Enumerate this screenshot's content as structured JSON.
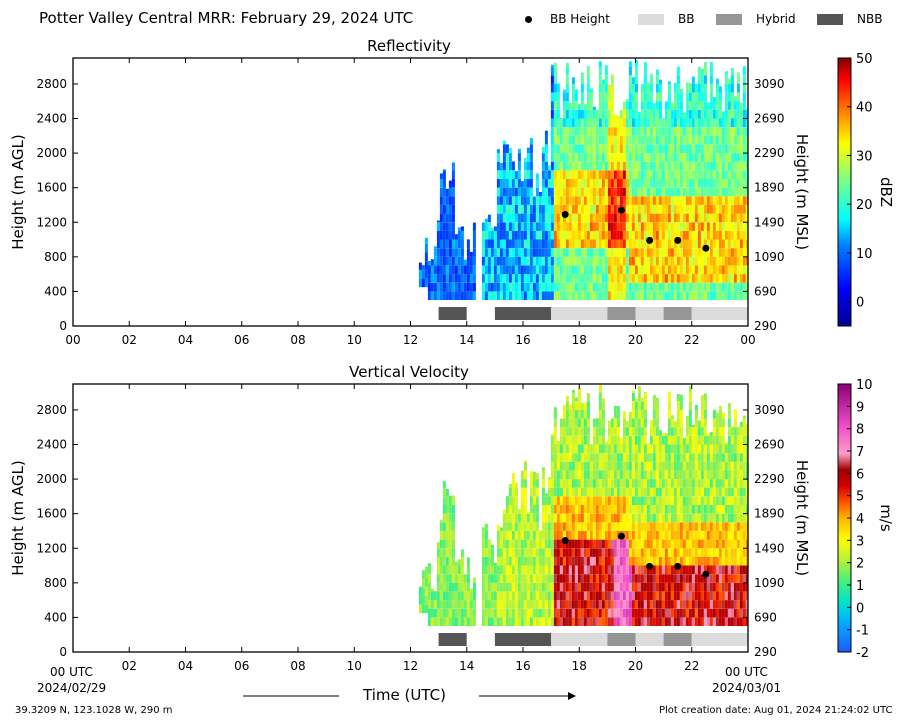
{
  "header": {
    "title": "Potter Valley Central MRR:  February 29, 2024 UTC"
  },
  "legend": [
    {
      "label": "BB Height",
      "kind": "dot",
      "color": "#000000"
    },
    {
      "label": "BB",
      "kind": "swatch",
      "color": "#dcdcdc"
    },
    {
      "label": "Hybrid",
      "kind": "swatch",
      "color": "#969696"
    },
    {
      "label": "NBB",
      "kind": "swatch",
      "color": "#555555"
    }
  ],
  "panels": [
    {
      "title": "Reflectivity",
      "ylabel": "Height (m AGL)",
      "ylabel_right": "Height (m MSL)",
      "colorbar_label": "dBZ",
      "colorbar_ticks": [
        "50",
        "40",
        "30",
        "20",
        "10",
        "0"
      ]
    },
    {
      "title": "Vertical Velocity",
      "ylabel": "Height (m AGL)",
      "ylabel_right": "Height (m MSL)",
      "colorbar_label": "m/s",
      "colorbar_ticks": [
        "10",
        "9",
        "8",
        "7",
        "6",
        "5",
        "4",
        "3",
        "2",
        "1",
        "0",
        "-1",
        "-2"
      ]
    }
  ],
  "axes": {
    "xlabel": "Time (UTC)",
    "x_start_label": "00 UTC",
    "x_end_label": "00 UTC",
    "x_start_date": "2024/02/29",
    "x_end_date": "2024/03/01"
  },
  "footer": {
    "location": "39.3209 N, 123.1028 W, 290 m",
    "creation": "Plot creation date: Aug 01, 2024 21:24:02 UTC"
  },
  "chart_data": {
    "type": "heatmap",
    "x_ticks": [
      "00",
      "02",
      "04",
      "06",
      "08",
      "10",
      "12",
      "14",
      "16",
      "18",
      "20",
      "22",
      "00"
    ],
    "x_tick_hours": [
      0,
      2,
      4,
      6,
      8,
      10,
      12,
      14,
      16,
      18,
      20,
      22,
      24
    ],
    "y_ticks_agl": [
      "0",
      "400",
      "800",
      "1200",
      "1600",
      "2000",
      "2400",
      "2800"
    ],
    "y_ticks_msl": [
      "290",
      "690",
      "1090",
      "1490",
      "1890",
      "2290",
      "2690",
      "3090"
    ],
    "xlim_hours": [
      0,
      24
    ],
    "ylim_m_agl": [
      0,
      3100
    ],
    "bb_height": [
      {
        "hour": 17.5,
        "height_m_agl": 1290
      },
      {
        "hour": 19.5,
        "height_m_agl": 1340
      },
      {
        "hour": 20.5,
        "height_m_agl": 990
      },
      {
        "hour": 21.5,
        "height_m_agl": 990
      },
      {
        "hour": 22.5,
        "height_m_agl": 900
      }
    ],
    "bb_classification": [
      {
        "start": 13.0,
        "end": 14.0,
        "type": "NBB"
      },
      {
        "start": 15.0,
        "end": 17.0,
        "type": "NBB"
      },
      {
        "start": 17.0,
        "end": 19.0,
        "type": "BB"
      },
      {
        "start": 19.0,
        "end": 20.0,
        "type": "Hybrid"
      },
      {
        "start": 20.0,
        "end": 21.0,
        "type": "BB"
      },
      {
        "start": 21.0,
        "end": 22.0,
        "type": "Hybrid"
      },
      {
        "start": 22.0,
        "end": 24.0,
        "type": "BB"
      }
    ],
    "reflectivity_dbz_range": [
      -5,
      50
    ],
    "velocity_ms_range": [
      -2,
      10
    ]
  }
}
